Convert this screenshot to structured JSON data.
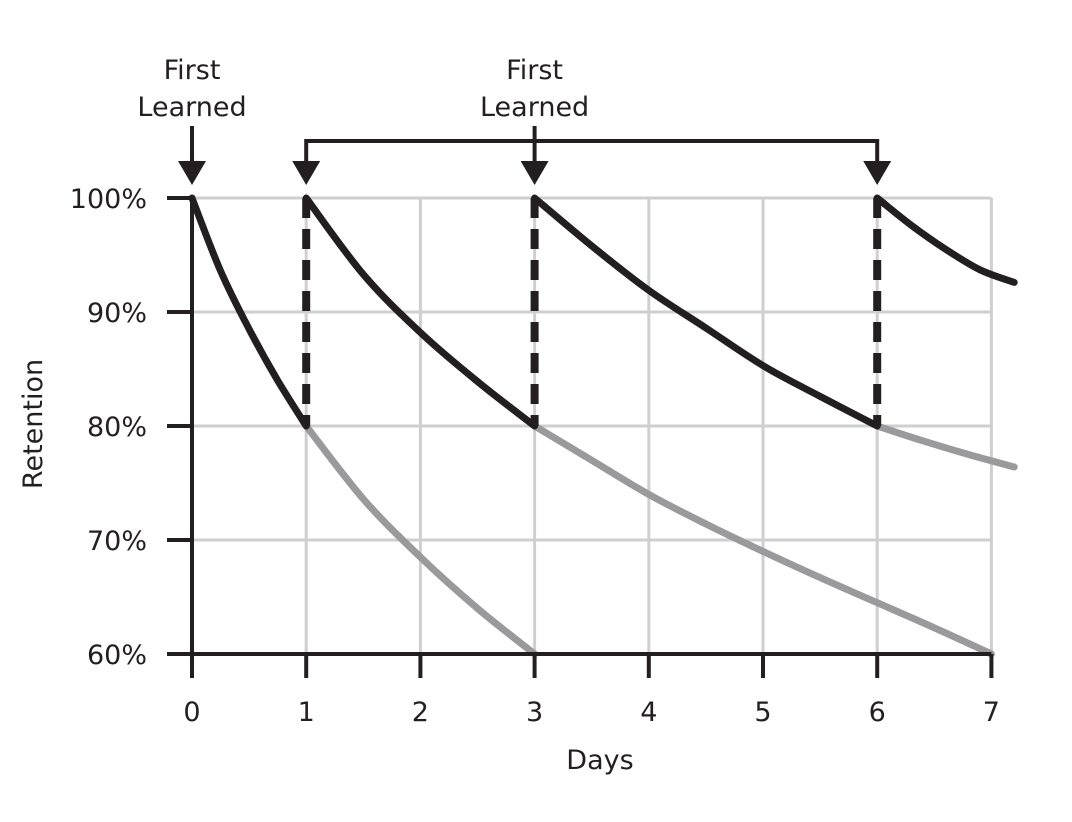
{
  "chart_data": {
    "type": "line",
    "title": "",
    "xlabel": "Days",
    "ylabel": "Retention",
    "xlim": [
      0,
      7
    ],
    "ylim": [
      60,
      100
    ],
    "x_ticks": [
      0,
      1,
      2,
      3,
      4,
      5,
      6,
      7
    ],
    "x_tick_labels": [
      "0",
      "1",
      "2",
      "3",
      "4",
      "5",
      "6",
      "7"
    ],
    "y_ticks": [
      60,
      70,
      80,
      90,
      100
    ],
    "y_tick_labels": [
      "60%",
      "70%",
      "80%",
      "90%",
      "100%"
    ],
    "grid": true,
    "colors": {
      "review_curve": "#231f20",
      "forgetting_curve": "#9a9a9c",
      "grid": "#cfcfcf",
      "axis": "#231f20"
    },
    "series": [
      {
        "style": "review",
        "points": [
          [
            0,
            100
          ],
          [
            0.25,
            93.6
          ],
          [
            0.5,
            88.5
          ],
          [
            0.75,
            84.0
          ],
          [
            1,
            80
          ]
        ]
      },
      {
        "style": "review",
        "points": [
          [
            1,
            100
          ],
          [
            1.5,
            93.3
          ],
          [
            2,
            88.2
          ],
          [
            2.5,
            83.9
          ],
          [
            3,
            80
          ]
        ]
      },
      {
        "style": "review",
        "points": [
          [
            3,
            100
          ],
          [
            3.5,
            95.8
          ],
          [
            4,
            91.9
          ],
          [
            4.5,
            88.6
          ],
          [
            5,
            85.3
          ],
          [
            5.5,
            82.6
          ],
          [
            6,
            80
          ]
        ]
      },
      {
        "style": "review",
        "points": [
          [
            6,
            100
          ],
          [
            6.3,
            97.6
          ],
          [
            6.6,
            95.5
          ],
          [
            6.9,
            93.7
          ],
          [
            7.2,
            92.6
          ]
        ]
      },
      {
        "style": "forgetting",
        "points": [
          [
            1,
            80
          ],
          [
            1.5,
            73.6
          ],
          [
            2,
            68.5
          ],
          [
            2.5,
            64.0
          ],
          [
            3,
            60
          ]
        ]
      },
      {
        "style": "forgetting",
        "points": [
          [
            3,
            80
          ],
          [
            3.5,
            77.0
          ],
          [
            4,
            74.0
          ],
          [
            4.5,
            71.4
          ],
          [
            5,
            69.0
          ],
          [
            5.5,
            66.7
          ],
          [
            6,
            64.5
          ],
          [
            6.5,
            62.3
          ],
          [
            7,
            60
          ]
        ]
      },
      {
        "style": "forgetting",
        "points": [
          [
            6,
            80
          ],
          [
            6.4,
            78.7
          ],
          [
            6.8,
            77.5
          ],
          [
            7.2,
            76.4
          ]
        ]
      }
    ],
    "review_markers": [
      1,
      3,
      6
    ],
    "review_marker_range": [
      80,
      100
    ],
    "annotations": [
      {
        "id": "first-learned",
        "lines": [
          "First",
          "Learned"
        ],
        "x": 0,
        "arrow_at_y": 100
      },
      {
        "id": "reviews",
        "lines": [
          "First",
          "Learned"
        ],
        "bracket_x": [
          1,
          3,
          6
        ],
        "label_x": 3,
        "arrow_at_y": 100
      }
    ]
  }
}
